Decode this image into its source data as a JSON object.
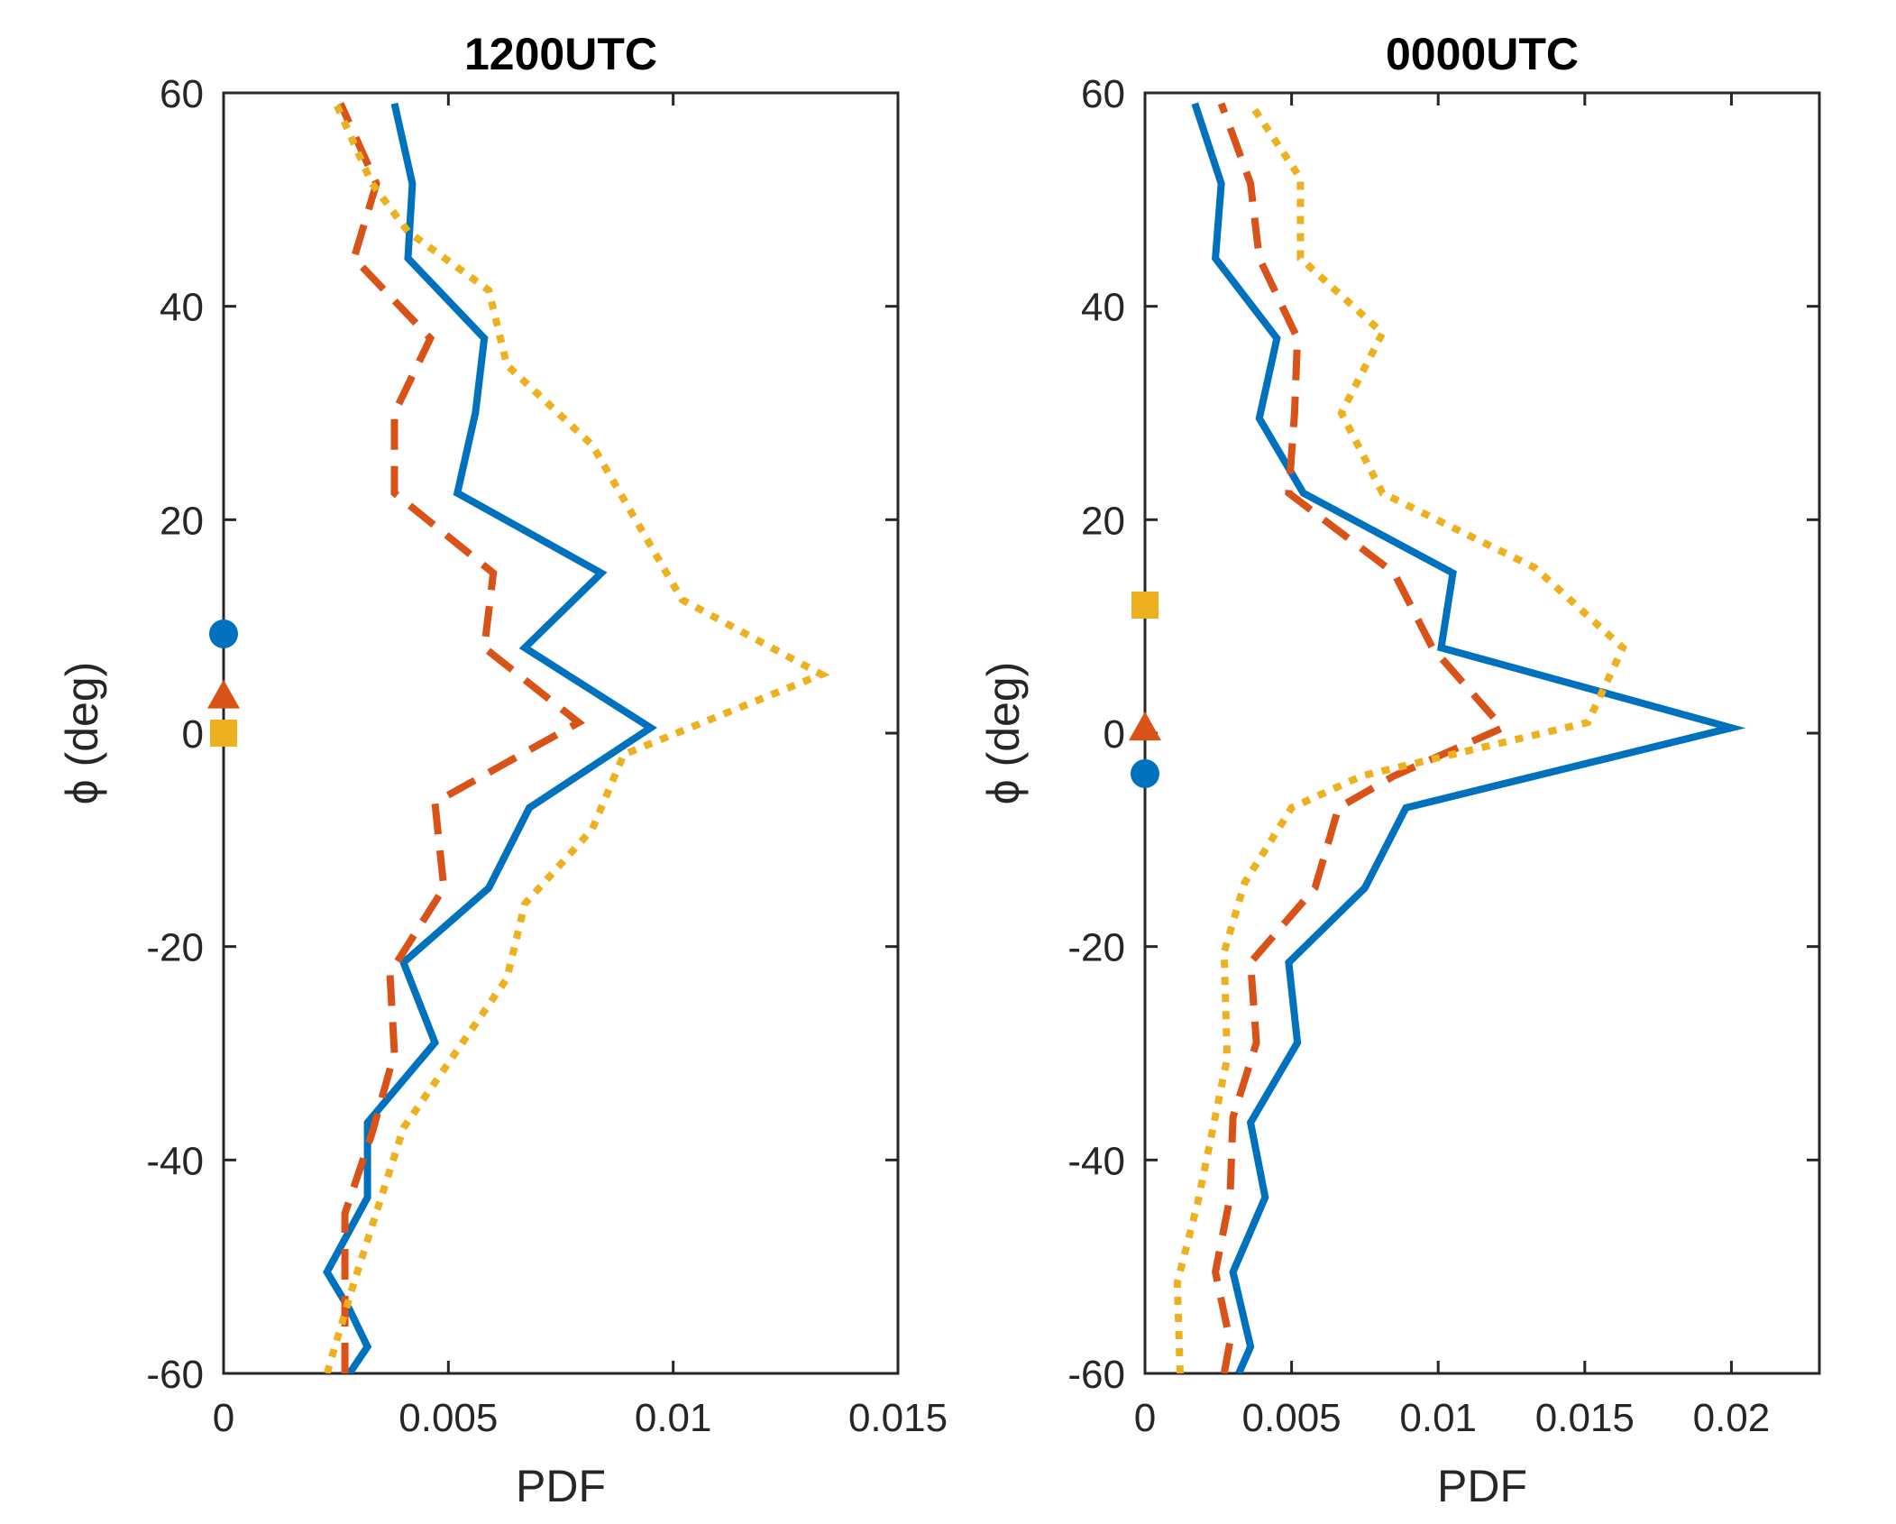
{
  "chart_data": [
    {
      "type": "line",
      "title": "1200UTC",
      "xlabel": "PDF",
      "ylabel": "ϕ (deg)",
      "xlim": [
        0,
        0.015
      ],
      "ylim": [
        -60,
        60
      ],
      "xticks": [
        "0",
        "0.005",
        "0.01",
        "0.015"
      ],
      "yticks": [
        "-60",
        "-40",
        "-20",
        "0",
        "20",
        "40",
        "60"
      ],
      "xtick_values": [
        0,
        0.005,
        0.01,
        0.015
      ],
      "ytick_values": [
        -60,
        -40,
        -20,
        0,
        20,
        40,
        60
      ],
      "series": [
        {
          "name": "series-1",
          "color": "#0072BD",
          "style": "solid",
          "marker": "circle",
          "marker_value": 9.3,
          "points": [
            [
              0.0028,
              -60
            ],
            [
              0.0032,
              -57.5
            ],
            [
              0.0028,
              -54
            ],
            [
              0.0023,
              -50.5
            ],
            [
              0.0032,
              -43.5
            ],
            [
              0.0032,
              -36.5
            ],
            [
              0.0047,
              -29
            ],
            [
              0.004,
              -21.5
            ],
            [
              0.0059,
              -14.5
            ],
            [
              0.0068,
              -7
            ],
            [
              0.0095,
              0.5
            ],
            [
              0.0067,
              8
            ],
            [
              0.0084,
              15
            ],
            [
              0.0052,
              22.5
            ],
            [
              0.0056,
              30
            ],
            [
              0.0058,
              37
            ],
            [
              0.0041,
              44.5
            ],
            [
              0.0042,
              51.5
            ],
            [
              0.0038,
              59
            ]
          ]
        },
        {
          "name": "series-2",
          "color": "#D95319",
          "style": "dashed",
          "marker": "triangle",
          "marker_value": 3.5,
          "points": [
            [
              0.0027,
              -60
            ],
            [
              0.0027,
              -52
            ],
            [
              0.0027,
              -45
            ],
            [
              0.0033,
              -37.5
            ],
            [
              0.0038,
              -30
            ],
            [
              0.0037,
              -22.5
            ],
            [
              0.0049,
              -14.5
            ],
            [
              0.0047,
              -6.5
            ],
            [
              0.0079,
              1
            ],
            [
              0.0058,
              8
            ],
            [
              0.006,
              15
            ],
            [
              0.0038,
              22.5
            ],
            [
              0.0038,
              30
            ],
            [
              0.0046,
              37
            ],
            [
              0.0029,
              44.5
            ],
            [
              0.0034,
              51.5
            ],
            [
              0.0026,
              59
            ]
          ]
        },
        {
          "name": "series-3",
          "color": "#EDB120",
          "style": "dotted",
          "marker": "square",
          "marker_value": 0,
          "points": [
            [
              0.0023,
              -60
            ],
            [
              0.0029,
              -51.5
            ],
            [
              0.004,
              -37
            ],
            [
              0.0063,
              -23
            ],
            [
              0.0067,
              -16
            ],
            [
              0.0082,
              -9
            ],
            [
              0.0089,
              -2
            ],
            [
              0.0133,
              5.5
            ],
            [
              0.0102,
              12.5
            ],
            [
              0.0082,
              27
            ],
            [
              0.0063,
              34.5
            ],
            [
              0.0059,
              41.5
            ],
            [
              0.0041,
              47
            ],
            [
              0.0033,
              51.5
            ],
            [
              0.0025,
              59
            ]
          ]
        }
      ]
    },
    {
      "type": "line",
      "title": "0000UTC",
      "xlabel": "PDF",
      "ylabel": "ϕ (deg)",
      "xlim": [
        0,
        0.023
      ],
      "ylim": [
        -60,
        60
      ],
      "xticks": [
        "0",
        "0.005",
        "0.01",
        "0.015",
        "0.02"
      ],
      "yticks": [
        "-60",
        "-40",
        "-20",
        "0",
        "20",
        "40",
        "60"
      ],
      "xtick_values": [
        0,
        0.005,
        0.01,
        0.015,
        0.02
      ],
      "ytick_values": [
        -60,
        -40,
        -20,
        0,
        20,
        40,
        60
      ],
      "series": [
        {
          "name": "series-1",
          "color": "#0072BD",
          "style": "solid",
          "marker": "circle",
          "marker_value": -3.8,
          "points": [
            [
              0.0032,
              -60
            ],
            [
              0.0036,
              -57.5
            ],
            [
              0.003,
              -50.5
            ],
            [
              0.0041,
              -43.5
            ],
            [
              0.0036,
              -36.5
            ],
            [
              0.0052,
              -29
            ],
            [
              0.0049,
              -21.5
            ],
            [
              0.0075,
              -14.5
            ],
            [
              0.0089,
              -7
            ],
            [
              0.02,
              0.5
            ],
            [
              0.0101,
              8
            ],
            [
              0.0105,
              15
            ],
            [
              0.0054,
              22.5
            ],
            [
              0.0039,
              29.5
            ],
            [
              0.0045,
              37
            ],
            [
              0.0024,
              44.5
            ],
            [
              0.0026,
              51.5
            ],
            [
              0.0017,
              59
            ]
          ]
        },
        {
          "name": "series-2",
          "color": "#D95319",
          "style": "dashed",
          "marker": "triangle",
          "marker_value": 0.5,
          "points": [
            [
              0.0027,
              -60
            ],
            [
              0.0029,
              -57
            ],
            [
              0.0024,
              -50.5
            ],
            [
              0.0029,
              -43.5
            ],
            [
              0.003,
              -36
            ],
            [
              0.0038,
              -29
            ],
            [
              0.0036,
              -21.5
            ],
            [
              0.0058,
              -14.5
            ],
            [
              0.0066,
              -7
            ],
            [
              0.0085,
              -4
            ],
            [
              0.0122,
              0.5
            ],
            [
              0.0098,
              8
            ],
            [
              0.0085,
              15
            ],
            [
              0.0049,
              22.5
            ],
            [
              0.0051,
              30
            ],
            [
              0.0052,
              37
            ],
            [
              0.0039,
              44.5
            ],
            [
              0.0036,
              51.5
            ],
            [
              0.0026,
              59
            ]
          ]
        },
        {
          "name": "series-3",
          "color": "#EDB120",
          "style": "dotted",
          "marker": "square",
          "marker_value": 12,
          "points": [
            [
              0.0012,
              -60
            ],
            [
              0.0011,
              -51.5
            ],
            [
              0.0018,
              -44
            ],
            [
              0.0028,
              -30.5
            ],
            [
              0.0027,
              -20.5
            ],
            [
              0.0034,
              -14
            ],
            [
              0.005,
              -7
            ],
            [
              0.0074,
              -4
            ],
            [
              0.0151,
              1
            ],
            [
              0.0163,
              8
            ],
            [
              0.0133,
              15.5
            ],
            [
              0.0081,
              22.5
            ],
            [
              0.0067,
              30
            ],
            [
              0.0081,
              37.5
            ],
            [
              0.0053,
              44.5
            ],
            [
              0.0053,
              52
            ],
            [
              0.0036,
              59
            ]
          ]
        }
      ]
    }
  ]
}
